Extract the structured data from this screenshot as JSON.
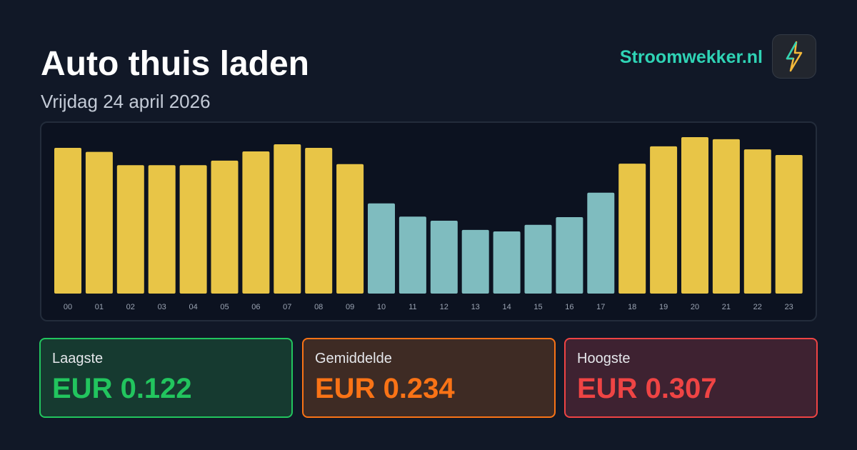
{
  "header": {
    "title": "Auto thuis laden",
    "subtitle": "Vrijdag 24 april 2026",
    "brand": "Stroomwekker.nl"
  },
  "chart_data": {
    "type": "bar",
    "categories": [
      "00",
      "01",
      "02",
      "03",
      "04",
      "05",
      "06",
      "07",
      "08",
      "09",
      "10",
      "11",
      "12",
      "13",
      "14",
      "15",
      "16",
      "17",
      "18",
      "19",
      "20",
      "21",
      "22",
      "23"
    ],
    "values": [
      0.286,
      0.278,
      0.252,
      0.252,
      0.252,
      0.261,
      0.279,
      0.293,
      0.286,
      0.254,
      0.177,
      0.151,
      0.143,
      0.125,
      0.122,
      0.135,
      0.15,
      0.198,
      0.255,
      0.289,
      0.307,
      0.303,
      0.283,
      0.272
    ],
    "colors": [
      "#e8c547",
      "#e8c547",
      "#e8c547",
      "#e8c547",
      "#e8c547",
      "#e8c547",
      "#e8c547",
      "#e8c547",
      "#e8c547",
      "#e8c547",
      "#7fbcbf",
      "#7fbcbf",
      "#7fbcbf",
      "#7fbcbf",
      "#7fbcbf",
      "#7fbcbf",
      "#7fbcbf",
      "#7fbcbf",
      "#e8c547",
      "#e8c547",
      "#e8c547",
      "#e8c547",
      "#e8c547",
      "#e8c547"
    ]
  },
  "stats": [
    {
      "label": "Laagste",
      "value": "EUR 0.122"
    },
    {
      "label": "Gemiddelde",
      "value": "EUR 0.234"
    },
    {
      "label": "Hoogste",
      "value": "EUR 0.307"
    }
  ]
}
